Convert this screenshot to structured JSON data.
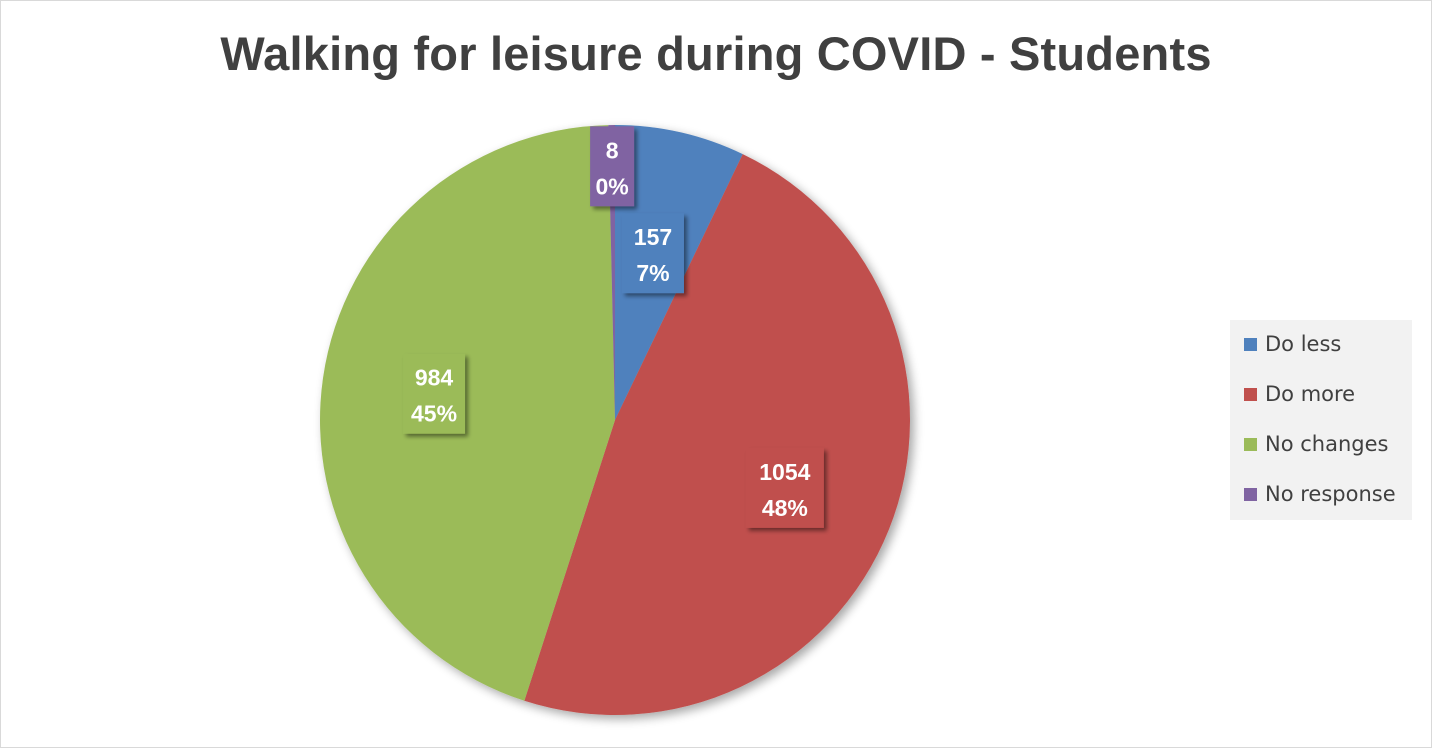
{
  "chart_data": {
    "type": "pie",
    "title": "Walking for leisure during COVID - Students",
    "start_angle_deg": 0,
    "direction": "clockwise",
    "legend_position": "right",
    "slices": [
      {
        "label": "Do less",
        "value": 157,
        "percent_label": "7%",
        "color": "#4f81bd"
      },
      {
        "label": "Do more",
        "value": 1054,
        "percent_label": "48%",
        "color": "#c0504d"
      },
      {
        "label": "No changes",
        "value": 984,
        "percent_label": "45%",
        "color": "#9bbb59"
      },
      {
        "label": "No response",
        "value": 8,
        "percent_label": "0%",
        "color": "#8064a2"
      }
    ]
  }
}
